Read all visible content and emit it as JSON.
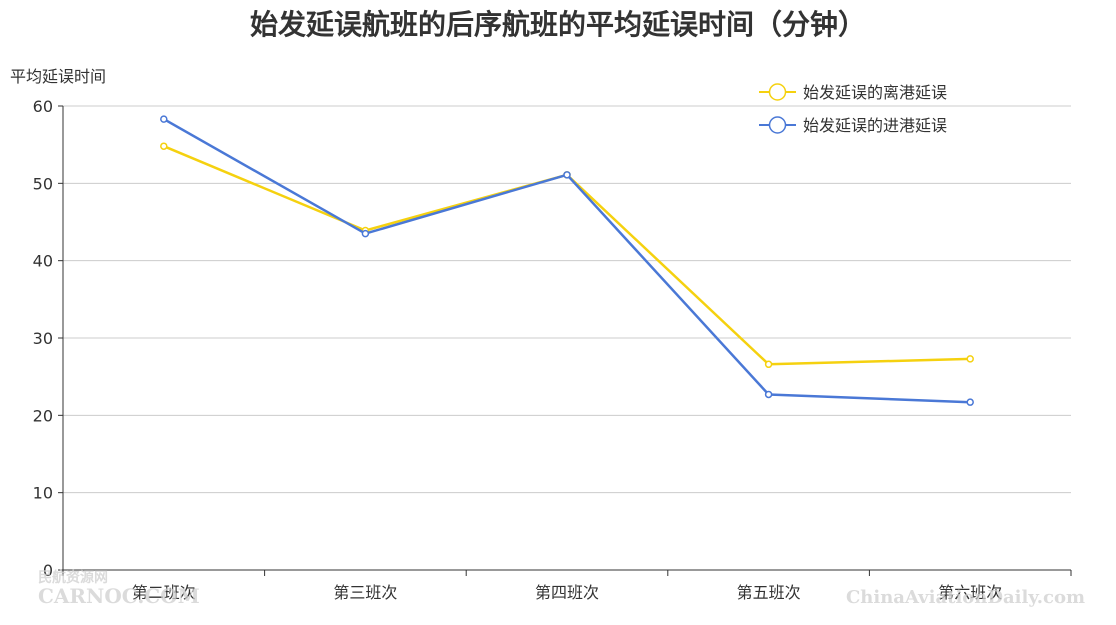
{
  "chart_data": {
    "type": "line",
    "title": "始发延误航班的后序航班的平均延误时间（分钟）",
    "ylabel": "平均延误时间",
    "xlabel": "",
    "categories": [
      "第二班次",
      "第三班次",
      "第四班次",
      "第五班次",
      "第六班次"
    ],
    "ylim": [
      0,
      60
    ],
    "yticks": [
      0,
      10,
      20,
      30,
      40,
      50,
      60
    ],
    "grid": true,
    "legend_position": "top-right",
    "series": [
      {
        "name": "始发延误的离港延误",
        "color": "#f5d10f",
        "values": [
          54.8,
          43.9,
          51.1,
          26.6,
          27.3
        ]
      },
      {
        "name": "始发延误的进港延误",
        "color": "#4a78d6",
        "values": [
          58.3,
          43.5,
          51.1,
          22.7,
          21.7
        ]
      }
    ]
  },
  "watermarks": {
    "left_cn": "民航资源网",
    "left_en": "CARNOC.COM",
    "right": "ChinaAviationDaily.com"
  }
}
